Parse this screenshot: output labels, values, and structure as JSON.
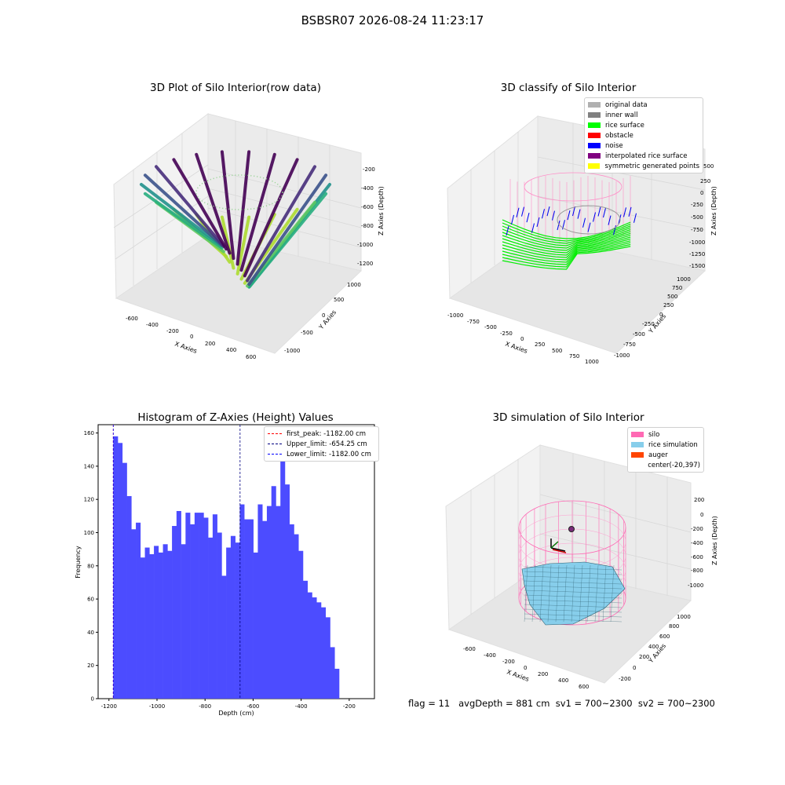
{
  "figure": {
    "suptitle": "BSBSR07 2026-08-24 11:23:17",
    "status_text": "flag = 11   avgDepth = 881 cm  sv1 = 700~2300  sv2 = 700~2300"
  },
  "panels": {
    "raw": {
      "title": "3D Plot of Silo Interior(row data)",
      "xlabel": "X Axies",
      "ylabel": "Y Axies",
      "zlabel": "Z Axies (Depth)",
      "xticks": [
        "-600",
        "-400",
        "-200",
        "0",
        "200",
        "400",
        "600"
      ],
      "yticks": [
        "-1000",
        "-500",
        "0",
        "500",
        "1000"
      ],
      "zticks": [
        "-200",
        "-400",
        "-600",
        "-800",
        "-1000",
        "-1200"
      ]
    },
    "classify": {
      "title": "3D classify of Silo Interior",
      "xlabel": "X Axies",
      "ylabel": "Y Axies",
      "zlabel": "Z Axies (Depth)",
      "xticks": [
        "-1000",
        "-750",
        "-500",
        "-250",
        "0",
        "250",
        "500",
        "750",
        "1000"
      ],
      "yticks": [
        "-1000",
        "-750",
        "-500",
        "-250",
        "0",
        "250",
        "500",
        "750",
        "1000"
      ],
      "zticks": [
        "500",
        "250",
        "0",
        "-250",
        "-500",
        "-750",
        "-1000",
        "-1250",
        "-1500"
      ],
      "legend": [
        {
          "label": "original data",
          "color": "#b0b0b0"
        },
        {
          "label": "inner wall",
          "color": "#808080"
        },
        {
          "label": "rice surface",
          "color": "#00ff00"
        },
        {
          "label": "obstacle",
          "color": "#ff0000"
        },
        {
          "label": "noise",
          "color": "#0000ff"
        },
        {
          "label": "interpolated rice surface",
          "color": "#800080"
        },
        {
          "label": "symmetric generated points",
          "color": "#ffff00"
        }
      ]
    },
    "simulation": {
      "title": "3D simulation of Silo Interior",
      "xlabel": "X Axies",
      "ylabel": "Y Axies",
      "zlabel": "Z Axies (Depth)",
      "xticks": [
        "-600",
        "-400",
        "-200",
        "0",
        "200",
        "400",
        "600"
      ],
      "yticks": [
        "-200",
        "0",
        "200",
        "400",
        "600",
        "800",
        "1000"
      ],
      "zticks": [
        "200",
        "0",
        "-200",
        "-400",
        "-600",
        "-800",
        "-1000"
      ],
      "legend": [
        {
          "label": "silo",
          "color": "#ff69b4"
        },
        {
          "label": "rice simulation",
          "color": "#87ceeb"
        },
        {
          "label": "auger",
          "color": "#ff4500"
        },
        {
          "label": "center(-20,397)",
          "color": "#ffffff"
        }
      ]
    }
  },
  "chart_data": [
    {
      "type": "bar",
      "title": "Histogram of Z-Axies (Height) Values",
      "xlabel": "Depth (cm)",
      "ylabel": "Frequency",
      "xlim": [
        -1245,
        -95
      ],
      "ylim": [
        0,
        165
      ],
      "bar_color": "#4c4cff",
      "bin_start": -1182,
      "bin_width": 18.8,
      "values": [
        158,
        154,
        142,
        122,
        102,
        106,
        85,
        91,
        87,
        92,
        88,
        93,
        89,
        104,
        113,
        93,
        112,
        105,
        112,
        112,
        109,
        97,
        111,
        100,
        74,
        91,
        98,
        94,
        117,
        108,
        108,
        88,
        117,
        107,
        116,
        128,
        116,
        153,
        129,
        105,
        99,
        89,
        71,
        64,
        61,
        58,
        55,
        49,
        31,
        18
      ],
      "xticks": [
        "-1200",
        "-1000",
        "-800",
        "-600",
        "-400",
        "-200"
      ],
      "xtick_values": [
        -1200,
        -1000,
        -800,
        -600,
        -400,
        -200
      ],
      "yticks": [
        "0",
        "20",
        "40",
        "60",
        "80",
        "100",
        "120",
        "140",
        "160"
      ],
      "ytick_values": [
        0,
        20,
        40,
        60,
        80,
        100,
        120,
        140,
        160
      ],
      "lines": [
        {
          "label": "first_peak: -1182.00 cm",
          "x": -1182.0,
          "color": "#ff0000"
        },
        {
          "label": "Upper_limit: -654.25 cm",
          "x": -654.25,
          "color": "#000080"
        },
        {
          "label": "Lower_limit: -1182.00 cm",
          "x": -1182.0,
          "color": "#0000ff"
        }
      ],
      "legend_position": "upper right"
    }
  ]
}
